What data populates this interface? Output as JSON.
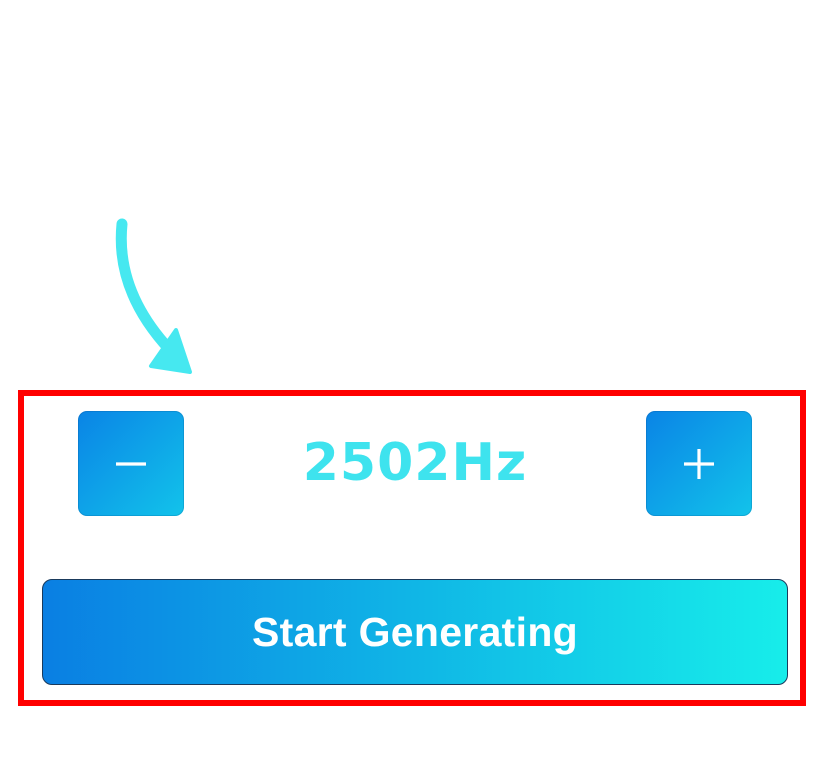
{
  "generator": {
    "frequency_value": 2502,
    "frequency_unit": "Hz",
    "frequency_display": "2502Hz",
    "decrease_label": "−",
    "increase_label": "+",
    "start_label": "Start Generating"
  },
  "annotation": {
    "arrow_icon": "curved-arrow-down-icon",
    "highlight": "red-highlight-frame"
  },
  "colors": {
    "accent_cyan": "#3ee3ee",
    "gradient_start": "#0a7fe3",
    "gradient_end": "#17edea",
    "highlight_red": "#ff0000",
    "background": "#ffffff"
  }
}
